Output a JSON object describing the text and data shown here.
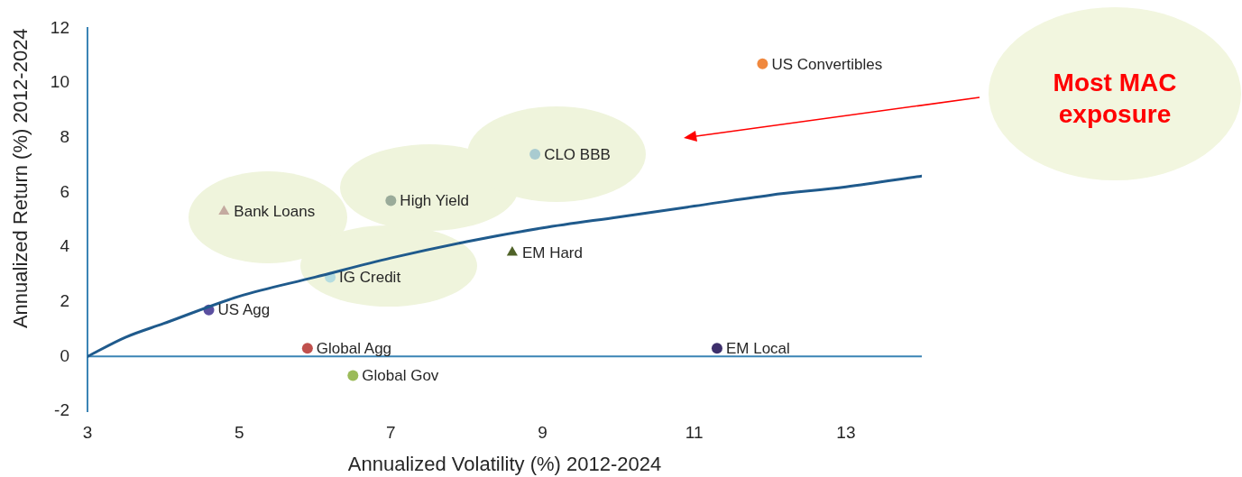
{
  "chart_data": {
    "type": "scatter",
    "xlabel": "Annualized Volatility (%) 2012-2024",
    "ylabel": "Annualized Return (%) 2012-2024",
    "xlim": [
      3,
      14
    ],
    "xticks": [
      3,
      5,
      7,
      9,
      11,
      13
    ],
    "ylim": [
      -2,
      12
    ],
    "yticks": [
      -2,
      0,
      2,
      4,
      6,
      8,
      10,
      12
    ],
    "ref_lines": [
      {
        "axis": "y",
        "value": 0,
        "color": "#3b84b5"
      }
    ],
    "annotations": [
      "Most MAC exposure"
    ],
    "series": [
      {
        "type": "line",
        "color": "#1f5a8c",
        "marker": "none",
        "x": [
          3,
          3.5,
          4,
          5,
          6,
          7,
          8,
          9,
          10,
          11,
          12,
          13,
          14
        ],
        "values": [
          0,
          0.7,
          1.2,
          2.2,
          2.9,
          3.6,
          4.2,
          4.7,
          5.1,
          5.5,
          5.9,
          6.2,
          6.6
        ]
      },
      {
        "name": "US Convertibles",
        "color": "#f0883e",
        "marker": "circle",
        "x": [
          11.9
        ],
        "values": [
          10.7
        ]
      },
      {
        "name": "CLO BBB",
        "color": "#a9cbd0",
        "marker": "circle",
        "x": [
          8.9
        ],
        "values": [
          7.4
        ]
      },
      {
        "name": "High Yield",
        "color": "#9aab9a",
        "marker": "circle",
        "x": [
          7.0
        ],
        "values": [
          5.7
        ]
      },
      {
        "name": "Bank Loans",
        "color": "#c4aaa0",
        "marker": "triangle",
        "x": [
          4.8
        ],
        "values": [
          5.3
        ]
      },
      {
        "name": "EM Hard",
        "color": "#4f6228",
        "marker": "triangle",
        "x": [
          8.6
        ],
        "values": [
          3.8
        ]
      },
      {
        "name": "IG Credit",
        "color": "#b5dde0",
        "marker": "circle",
        "x": [
          6.2
        ],
        "values": [
          2.9
        ]
      },
      {
        "name": "US Agg",
        "color": "#5b4fa0",
        "marker": "circle",
        "x": [
          4.6
        ],
        "values": [
          1.7
        ]
      },
      {
        "name": "Global Agg",
        "color": "#c0504d",
        "marker": "circle",
        "x": [
          5.9
        ],
        "values": [
          0.3
        ]
      },
      {
        "name": "EM Local",
        "color": "#3d2f6b",
        "marker": "circle",
        "x": [
          11.3
        ],
        "values": [
          0.3
        ]
      },
      {
        "name": "Global Gov",
        "color": "#9bbb59",
        "marker": "circle",
        "x": [
          6.5
        ],
        "values": [
          -0.7
        ]
      }
    ]
  }
}
